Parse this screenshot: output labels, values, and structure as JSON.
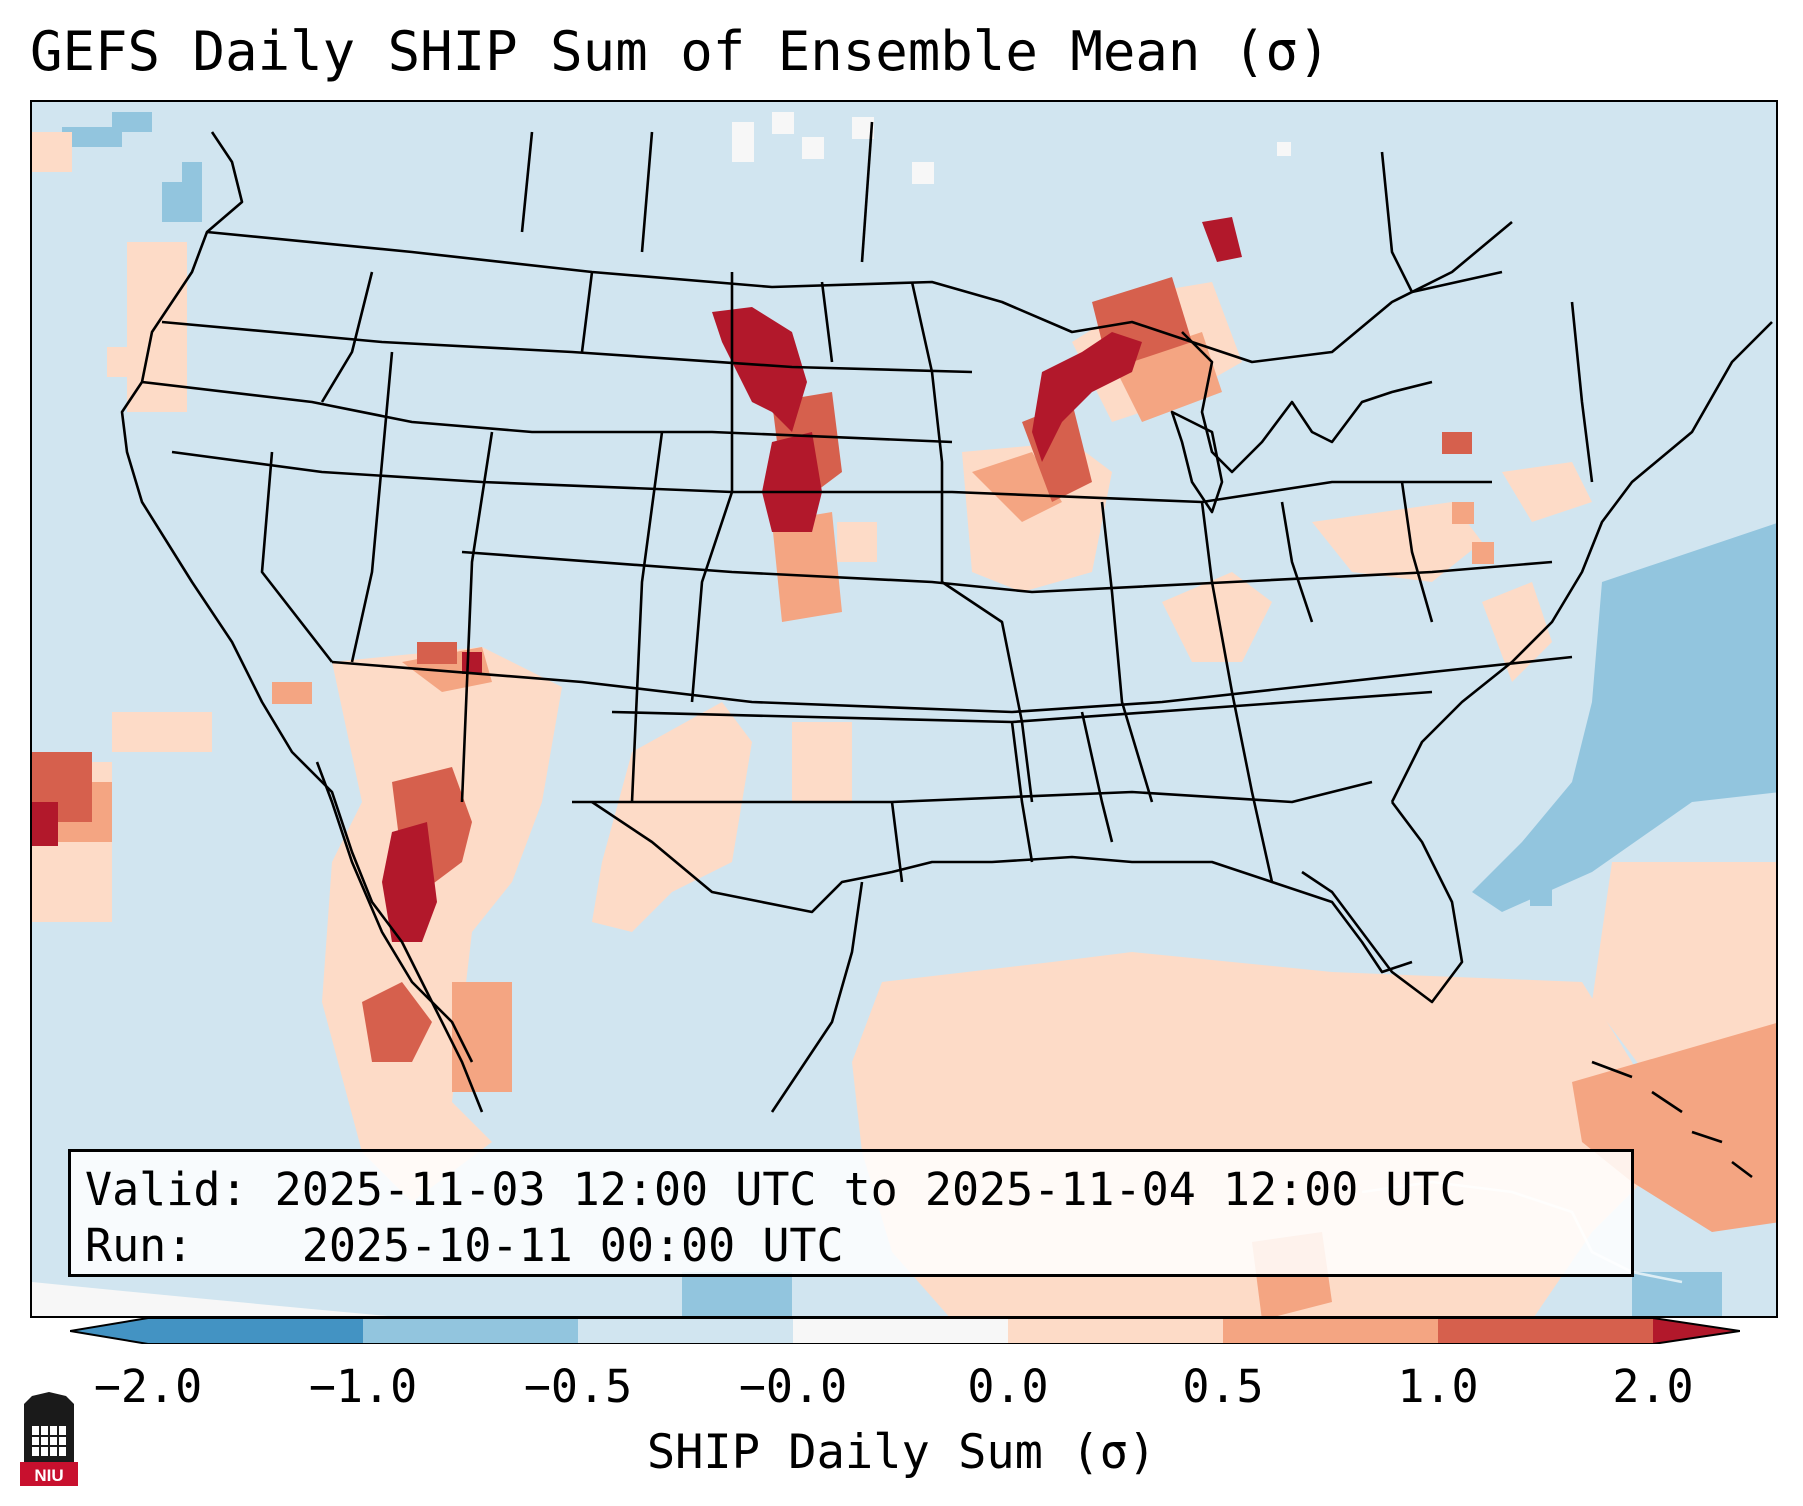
{
  "title": "GEFS Daily SHIP Sum of Ensemble Mean (σ)",
  "info": {
    "valid_label": "Valid:",
    "valid_value": "2025-11-03 12:00 UTC to 2025-11-04 12:00 UTC",
    "run_label": "Run:",
    "run_value": "2025-10-11 00:00 UTC"
  },
  "colorbar": {
    "label": "SHIP Daily Sum (σ)",
    "ticks": [
      "−2.0",
      "−1.0",
      "−0.5",
      "−0.0",
      "0.0",
      "0.5",
      "1.0",
      "2.0"
    ],
    "bin_colors": [
      "#4393c3",
      "#92c5de",
      "#d1e5f0",
      "#f7f7f7",
      "#fddbc7",
      "#f4a582",
      "#d6604d",
      "#b2182b"
    ],
    "extend": "both"
  },
  "colors": {
    "background_bin": "#d1e5f0",
    "ocean_negative": "#92c5de",
    "light_positive": "#fddbc7",
    "mid_positive": "#f4a582",
    "strong_positive": "#d6604d",
    "max_positive": "#b2182b"
  },
  "logo": {
    "text": "NIU",
    "icon": "niu-logo-icon"
  }
}
